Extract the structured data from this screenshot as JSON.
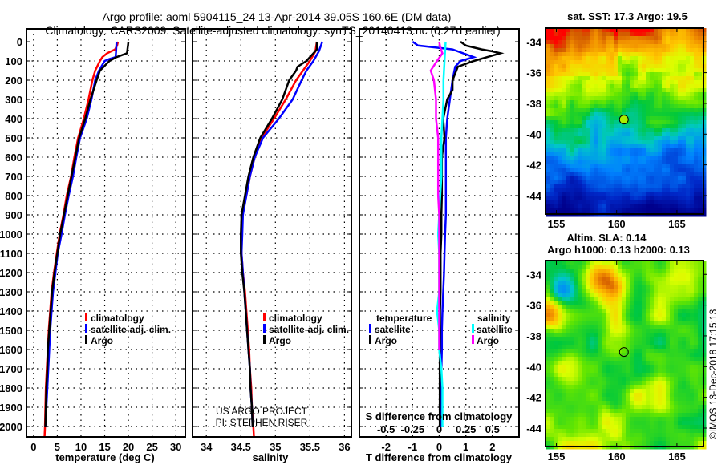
{
  "title_line1": "Argo profile: aoml 5904115_24 13-Apr-2014 39.05S 160.6E (DM data)",
  "title_line2": "Climatology: CARS2009. Satellite-adjusted climatology: synTS_20140413.nc (0.27d earlier)",
  "colors": {
    "climatology": "#ff0000",
    "satellite": "#0000ff",
    "argo": "#000000",
    "sat_salinity": "#00ffff",
    "argo_salinity": "#ff00ff"
  },
  "chart_data": [
    {
      "id": "temperature",
      "type": "line",
      "xlabel": "temperature (deg C)",
      "ylabel": "",
      "xlim": [
        -1.5,
        32
      ],
      "ylim": [
        2060,
        0
      ],
      "xticks": [
        0,
        5,
        10,
        15,
        20,
        25,
        30
      ],
      "yticks": [
        0,
        100,
        200,
        300,
        400,
        500,
        600,
        700,
        800,
        900,
        1000,
        1100,
        1200,
        1300,
        1400,
        1500,
        1600,
        1700,
        1800,
        1900,
        2000
      ],
      "grid": true,
      "legend": {
        "placement": "center-right",
        "entries": [
          "climatology",
          "satellite-adj. clim.",
          "Argo"
        ]
      },
      "series": [
        {
          "name": "climatology",
          "color": "#ff0000",
          "depth": [
            0,
            20,
            40,
            60,
            80,
            100,
            150,
            200,
            300,
            400,
            500,
            600,
            700,
            800,
            900,
            1000,
            1100,
            1200,
            1300,
            1400,
            1500,
            1600,
            1700,
            1800,
            1900,
            2000,
            2060
          ],
          "values": [
            17.8,
            17.6,
            17.2,
            15.5,
            14.5,
            14.0,
            13.0,
            12.4,
            11.6,
            10.6,
            9.4,
            8.6,
            7.9,
            7.0,
            6.3,
            5.5,
            4.9,
            4.3,
            3.8,
            3.5,
            3.2,
            3.0,
            2.8,
            2.6,
            2.5,
            2.4,
            2.3
          ]
        },
        {
          "name": "satellite-adj. clim.",
          "color": "#0000ff",
          "depth": [
            0,
            50,
            80,
            90,
            100,
            150,
            200,
            300,
            400,
            500,
            600,
            700,
            800,
            900,
            1000,
            1100,
            1200,
            1300,
            1400,
            1500,
            1600,
            1700,
            1800,
            1900,
            2000
          ],
          "values": [
            17.5,
            17.4,
            17.3,
            16.0,
            15.0,
            13.8,
            13.0,
            12.2,
            11.2,
            9.8,
            9.0,
            8.3,
            7.4,
            6.6,
            5.9,
            5.1,
            4.6,
            4.1,
            3.8,
            3.5,
            3.3,
            3.1,
            2.9,
            2.7,
            2.5
          ]
        },
        {
          "name": "Argo",
          "color": "#000000",
          "depth": [
            0,
            20,
            60,
            80,
            100,
            150,
            200,
            300,
            400,
            500,
            600,
            700,
            800,
            900,
            1000,
            1100,
            1200,
            1300,
            1400,
            1500,
            1600,
            1700,
            1800,
            1900,
            2000
          ],
          "values": [
            20.0,
            19.9,
            19.7,
            17.5,
            16.0,
            14.0,
            13.3,
            12.0,
            10.9,
            9.6,
            8.8,
            8.0,
            7.2,
            6.4,
            5.6,
            5.0,
            4.4,
            3.9,
            3.6,
            3.3,
            3.0,
            2.9,
            2.7,
            2.6,
            2.5
          ]
        }
      ]
    },
    {
      "id": "salinity",
      "type": "line",
      "xlabel": "salinity",
      "ylabel": "",
      "xlim": [
        33.8,
        36.1
      ],
      "ylim": [
        2060,
        0
      ],
      "xticks": [
        34,
        34.5,
        35,
        35.5,
        36
      ],
      "xticklabels": [
        "34",
        "34.5",
        "35",
        "35.5",
        "36"
      ],
      "grid": true,
      "legend": {
        "placement": "center-right",
        "entries": [
          "climatology",
          "satellite-adj. clim.",
          "Argo"
        ]
      },
      "annotation": [
        "US ARGO PROJECT",
        "PI: STEPHEN RISER"
      ],
      "series": [
        {
          "name": "climatology",
          "color": "#ff0000",
          "depth": [
            0,
            50,
            100,
            150,
            200,
            300,
            400,
            500,
            600,
            700,
            800,
            900,
            1000,
            1100,
            1200,
            1300,
            1400,
            1500,
            1600,
            1700,
            1800,
            1900,
            2000,
            2060
          ],
          "values": [
            35.6,
            35.58,
            35.5,
            35.4,
            35.3,
            35.15,
            34.98,
            34.8,
            34.7,
            34.63,
            34.58,
            34.52,
            34.51,
            34.51,
            34.53,
            34.56,
            34.58,
            34.6,
            34.62,
            34.63,
            34.65,
            34.66,
            34.68,
            34.69
          ]
        },
        {
          "name": "satellite-adj. clim.",
          "color": "#0000ff",
          "depth": [
            0,
            50,
            100,
            150,
            200,
            300,
            400,
            500,
            600,
            700,
            800,
            900,
            1000,
            1100,
            1200,
            1300,
            1400,
            1500,
            1600,
            1700,
            1800,
            1900,
            2000
          ],
          "values": [
            35.68,
            35.63,
            35.55,
            35.45,
            35.38,
            35.25,
            35.05,
            34.82,
            34.7,
            34.63,
            34.58,
            34.53,
            34.52,
            34.51,
            34.53,
            34.55,
            34.57,
            34.59,
            34.61,
            34.63,
            34.64,
            34.66,
            34.67
          ]
        },
        {
          "name": "Argo",
          "color": "#000000",
          "depth": [
            0,
            40,
            60,
            100,
            130,
            150,
            200,
            300,
            400,
            500,
            600,
            700,
            800,
            900,
            1000,
            1100,
            1200,
            1300,
            1400,
            1500,
            1600,
            1700,
            1800,
            1900,
            2000
          ],
          "values": [
            35.6,
            35.6,
            35.55,
            35.45,
            35.32,
            35.3,
            35.2,
            35.1,
            34.95,
            34.78,
            34.68,
            34.61,
            34.56,
            34.51,
            34.5,
            34.5,
            34.52,
            34.55,
            34.57,
            34.59,
            34.61,
            34.63,
            34.64,
            34.66,
            34.67
          ]
        }
      ]
    },
    {
      "id": "difference",
      "type": "line",
      "xlabel": "T difference from climatology",
      "xlabel2": "S difference from climatology",
      "xlim": [
        -3,
        3
      ],
      "xlim2": [
        -0.75,
        0.75
      ],
      "ylim": [
        2060,
        0
      ],
      "xticks": [
        -2,
        -1,
        0,
        1,
        2
      ],
      "xticks2": [
        -0.5,
        -0.25,
        0,
        0.25,
        0.5
      ],
      "xticklabels2": [
        "-0.5",
        "-0.25",
        "0",
        "0.25",
        "0.5"
      ],
      "grid": true,
      "legend": {
        "placement": "lower-center",
        "groups": [
          {
            "title": "temperature",
            "entries": [
              "satellite",
              "Argo"
            ]
          },
          {
            "title": "salinity",
            "entries": [
              "satellite",
              "Argo"
            ]
          }
        ]
      },
      "series": [
        {
          "name": "temperature satellite",
          "color": "#0000ff",
          "axis": "T",
          "depth": [
            0,
            20,
            40,
            60,
            80,
            100,
            130,
            200,
            300,
            400,
            500,
            600,
            700,
            800,
            900,
            1000,
            1100,
            1200,
            1300,
            1400,
            1500,
            1600,
            1700,
            1800,
            1900,
            2000
          ],
          "values": [
            -1.0,
            -0.8,
            0.5,
            0.9,
            1.3,
            0.8,
            0.6,
            0.5,
            0.4,
            0.3,
            0.25,
            0.25,
            0.25,
            0.25,
            0.25,
            0.22,
            0.2,
            0.18,
            0.15,
            0.12,
            0.1,
            0.1,
            0.08,
            0.06,
            0.05,
            0.05
          ]
        },
        {
          "name": "temperature Argo",
          "color": "#000000",
          "axis": "T",
          "depth": [
            0,
            20,
            40,
            50,
            60,
            80,
            100,
            130,
            200,
            250,
            300,
            400,
            500,
            600,
            700,
            800,
            900,
            1000,
            1100,
            1200,
            1300,
            1400,
            1500,
            1600,
            1700,
            1800,
            1900,
            2000
          ],
          "values": [
            0.8,
            1.0,
            1.6,
            2.0,
            2.3,
            1.8,
            1.3,
            0.7,
            0.5,
            0.5,
            0.3,
            0.15,
            0.2,
            0.1,
            0.1,
            0.1,
            0.08,
            0.08,
            0.05,
            0.05,
            0.05,
            0.03,
            0.03,
            0.02,
            0.02,
            0.02,
            0.02,
            0.02
          ]
        },
        {
          "name": "salinity satellite",
          "color": "#00ffff",
          "axis": "S",
          "depth": [
            0,
            100,
            200,
            300,
            400,
            500,
            600,
            700,
            800,
            900,
            1000,
            1100,
            1200,
            1300,
            1400,
            1500,
            1600,
            1700,
            1800,
            1900,
            2000
          ],
          "values": [
            0.06,
            0.05,
            0.04,
            0.04,
            0.03,
            0.02,
            0.02,
            0.02,
            0.01,
            0.0,
            -0.01,
            0.0,
            0.0,
            0.0,
            -0.02,
            0.0,
            0.0,
            0.02,
            0.03,
            0.03,
            0.03
          ]
        },
        {
          "name": "salinity Argo",
          "color": "#ff00ff",
          "axis": "S",
          "depth": [
            0,
            30,
            60,
            100,
            150,
            200,
            300,
            400,
            500,
            600,
            700,
            800,
            900,
            1000,
            1100,
            1200,
            1300,
            1400,
            1500,
            1600
          ],
          "values": [
            0.0,
            0.01,
            0.03,
            -0.02,
            -0.08,
            -0.05,
            -0.03,
            -0.03,
            -0.01,
            -0.01,
            -0.01,
            -0.01,
            0.0,
            0.0,
            0.0,
            0.0,
            0.0,
            0.0,
            0.0,
            0.0
          ]
        }
      ]
    },
    {
      "id": "sst-map",
      "type": "heatmap",
      "title": "sat. SST: 17.3 Argo: 19.5",
      "xlim": [
        154.1,
        167.2
      ],
      "ylim": [
        -45.2,
        -33.1
      ],
      "xticks": [
        155,
        160,
        165
      ],
      "yticks": [
        -34,
        -36,
        -38,
        -40,
        -42,
        -44
      ],
      "marker": {
        "lon": 160.6,
        "lat": -39.05
      }
    },
    {
      "id": "sla-map",
      "type": "heatmap",
      "title": "Altim. SLA: 0.14",
      "subtitle": "Argo h1000: 0.13 h2000: 0.13",
      "xlim": [
        154.1,
        167.2
      ],
      "ylim": [
        -45.2,
        -33.1
      ],
      "xticks": [
        155,
        160,
        165
      ],
      "yticks": [
        -34,
        -36,
        -38,
        -40,
        -42,
        -44
      ],
      "marker": {
        "lon": 160.6,
        "lat": -39.05
      }
    }
  ],
  "legend_labels": {
    "climatology": "climatology",
    "satellite_adj": "satellite-adj. clim.",
    "argo": "Argo",
    "temperature": "temperature",
    "salinity": "salinity",
    "satellite": "satellite"
  },
  "credit": "©IMOS 13-Dec-2018 17:15:13"
}
